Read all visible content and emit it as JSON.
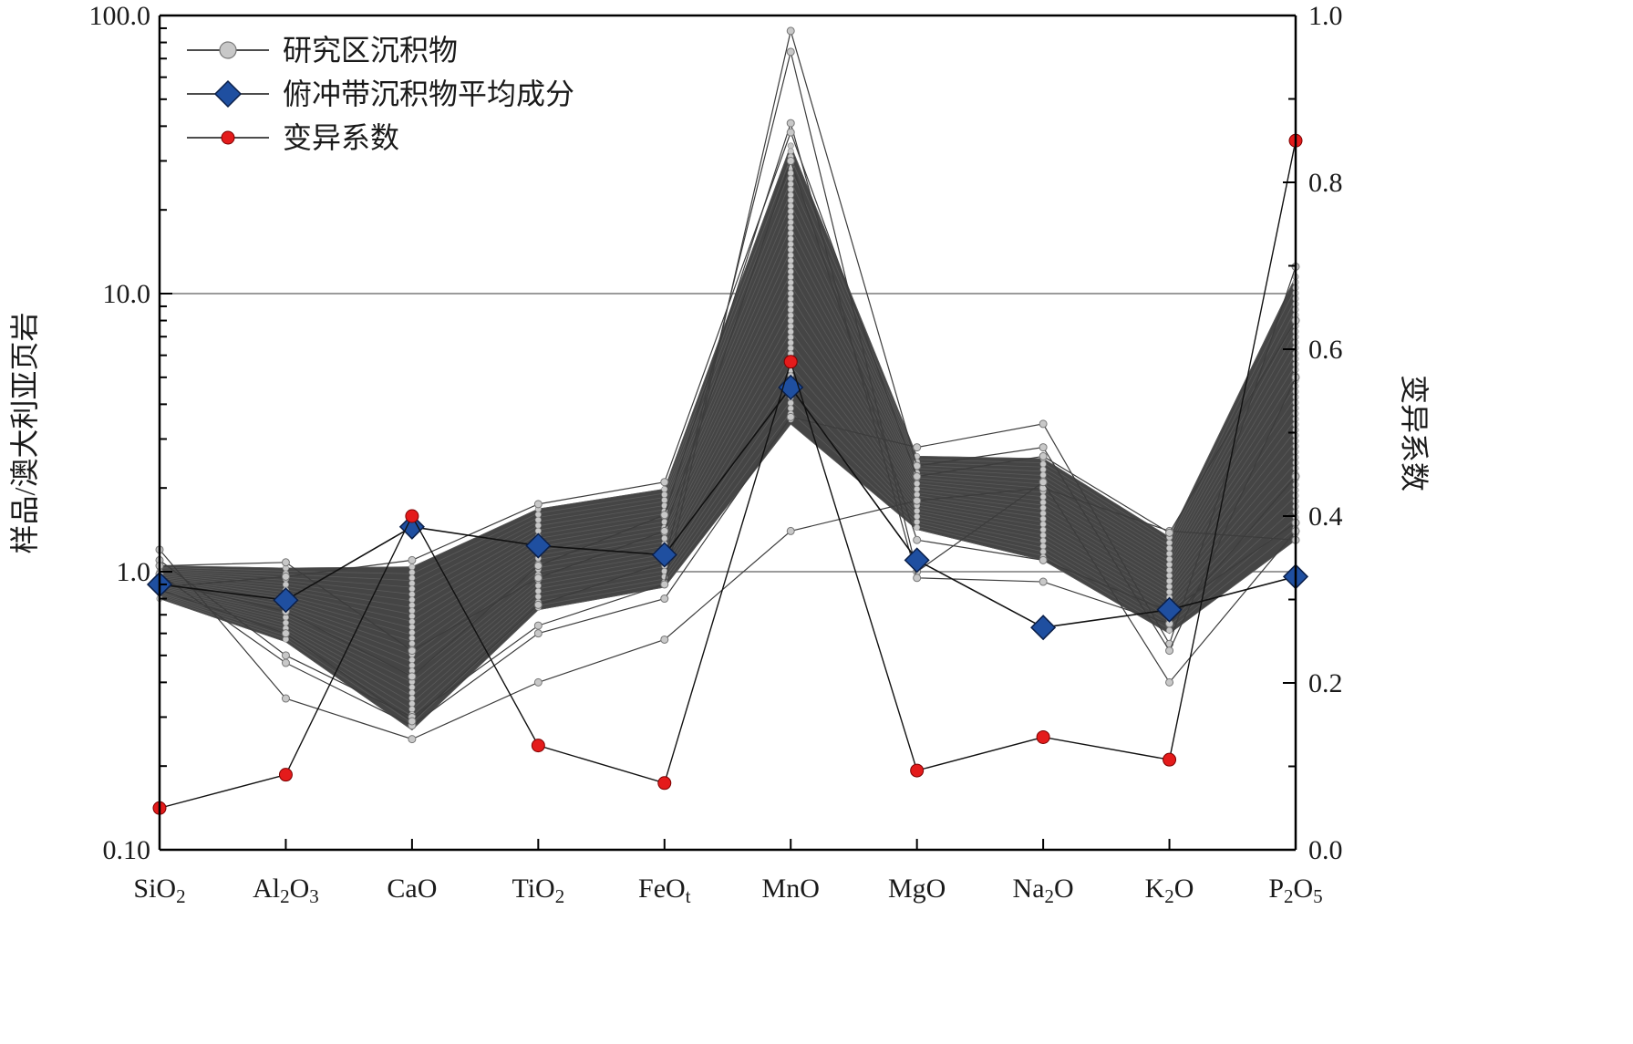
{
  "chart_data": {
    "type": "line",
    "categories": [
      {
        "base": "SiO",
        "sub": "2",
        "tail": ""
      },
      {
        "base": "Al",
        "sub": "2",
        "tail": "O",
        "sub2": "3"
      },
      {
        "base": "CaO",
        "sub": "",
        "tail": ""
      },
      {
        "base": "TiO",
        "sub": "2",
        "tail": ""
      },
      {
        "base": "FeO",
        "sub": "t",
        "tail": ""
      },
      {
        "base": "MnO",
        "sub": "",
        "tail": ""
      },
      {
        "base": "MgO",
        "sub": "",
        "tail": ""
      },
      {
        "base": "Na",
        "sub": "2",
        "tail": "O"
      },
      {
        "base": "K",
        "sub": "2",
        "tail": "O"
      },
      {
        "base": "P",
        "sub": "2",
        "tail": "O",
        "sub2": "5"
      }
    ],
    "y_left": {
      "label": "样品/澳大利亚页岩",
      "scale": "log",
      "range": [
        0.1,
        100
      ],
      "ticks": [
        "0.10",
        "1.0",
        "10.0",
        "100.0"
      ],
      "tick_values": [
        0.1,
        1,
        10,
        100
      ],
      "gridlines": [
        1,
        10
      ]
    },
    "y_right": {
      "label": "变异系数",
      "scale": "linear",
      "range": [
        0,
        1
      ],
      "ticks": [
        "0.0",
        "0.2",
        "0.4",
        "0.6",
        "0.8",
        "1.0"
      ],
      "tick_values": [
        0,
        0.2,
        0.4,
        0.6,
        0.8,
        1.0
      ]
    },
    "legend": {
      "placement": "top-left",
      "items": [
        "研究区沉积物",
        "俯冲带沉积物平均成分",
        "变异系数"
      ]
    },
    "series": [
      {
        "name": "研究区沉积物",
        "axis": "left",
        "style": "gray-circle",
        "envelope_min": [
          0.8,
          0.56,
          0.27,
          0.73,
          0.88,
          3.4,
          1.42,
          1.1,
          0.6,
          1.3
        ],
        "envelope_max": [
          1.05,
          1.03,
          1.04,
          1.68,
          1.98,
          34.0,
          2.6,
          2.55,
          1.33,
          11.5
        ],
        "samples": [
          [
            1.2,
            0.35,
            0.25,
            0.4,
            0.57,
            1.4,
            1.8,
            2.0,
            1.4,
            1.3
          ],
          [
            0.98,
            0.47,
            0.28,
            0.6,
            0.8,
            3.6,
            2.8,
            3.4,
            0.55,
            12.5
          ],
          [
            1.1,
            0.5,
            0.3,
            0.64,
            0.9,
            88.0,
            2.4,
            2.8,
            0.52,
            5.0
          ],
          [
            0.86,
            0.6,
            0.29,
            0.76,
            1.08,
            74.0,
            1.0,
            2.1,
            0.4,
            1.4
          ],
          [
            0.92,
            0.72,
            0.42,
            1.05,
            1.6,
            41.0,
            0.95,
            0.92,
            0.65,
            2.2
          ],
          [
            1.05,
            1.08,
            0.52,
            0.95,
            1.4,
            30.0,
            1.3,
            1.1,
            0.72,
            1.5
          ],
          [
            0.88,
            0.96,
            1.1,
            1.75,
            2.1,
            38.0,
            2.2,
            2.6,
            1.38,
            8.0
          ]
        ]
      },
      {
        "name": "俯冲带沉积物平均成分",
        "axis": "left",
        "style": "blue-diamond",
        "values": [
          0.9,
          0.79,
          1.45,
          1.24,
          1.15,
          4.6,
          1.1,
          0.63,
          0.73,
          0.96
        ]
      },
      {
        "name": "变异系数",
        "axis": "right",
        "style": "red-dot",
        "values": [
          0.05,
          0.09,
          0.4,
          0.125,
          0.08,
          0.585,
          0.095,
          0.135,
          0.108,
          0.85
        ]
      }
    ]
  }
}
